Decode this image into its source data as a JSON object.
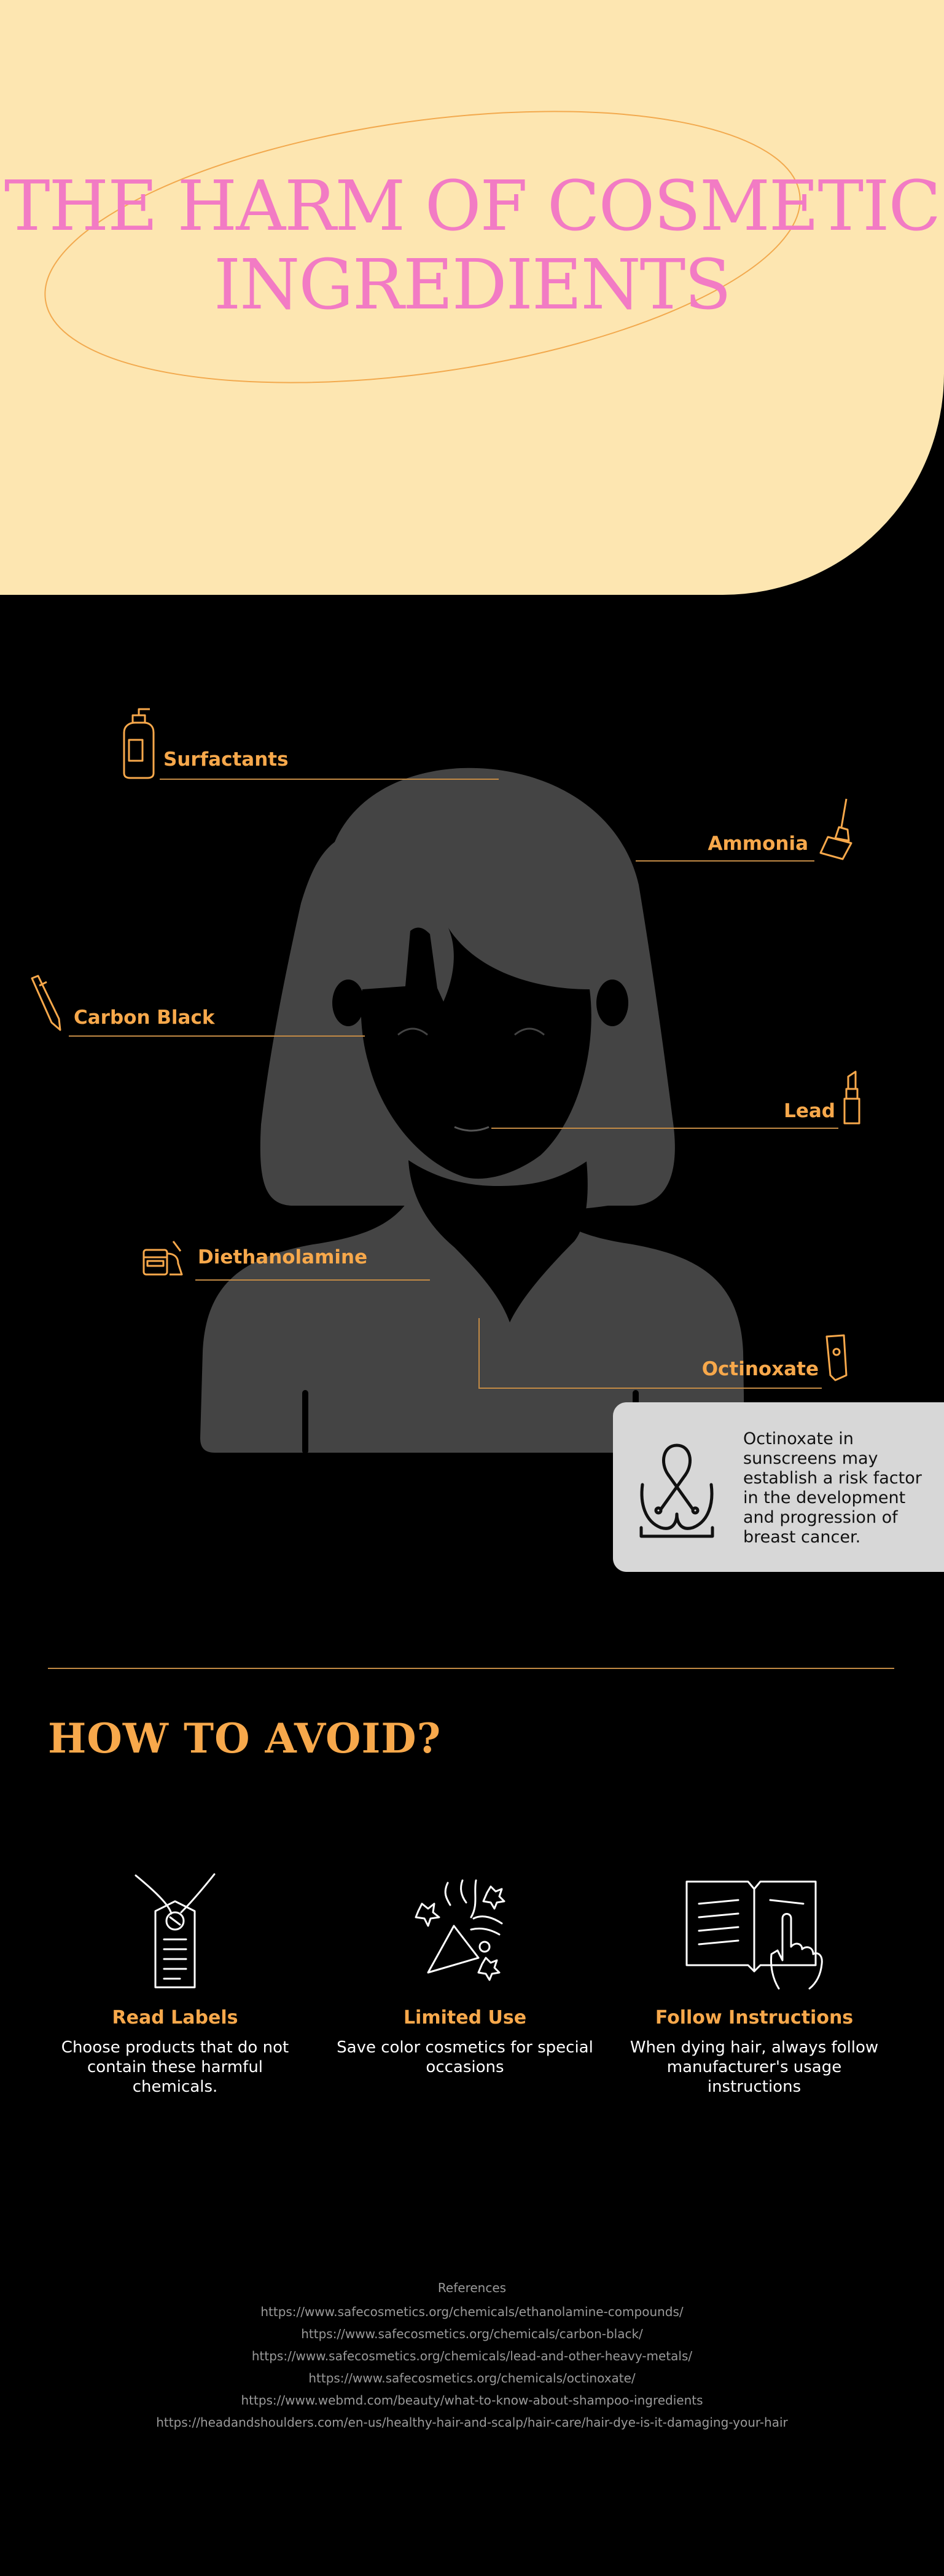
{
  "hero": {
    "title_line1": "THE HARM OF COSMETIC",
    "title_line2": "INGREDIENTS"
  },
  "colors": {
    "hero_bg": "#FDE6B1",
    "title": "#F27BC4",
    "accent": "#F7A84B",
    "silhouette": "#444444",
    "background": "#000000",
    "card": "#D7D7D7"
  },
  "ingredients": [
    {
      "name": "Surfactants",
      "icon": "pump-bottle-icon"
    },
    {
      "name": "Ammonia",
      "icon": "hair-dye-brush-icon"
    },
    {
      "name": "Carbon Black",
      "icon": "eyeliner-pencil-icon"
    },
    {
      "name": "Lead",
      "icon": "lipstick-icon"
    },
    {
      "name": "Diethanolamine",
      "icon": "cosmetics-set-icon"
    },
    {
      "name": "Octinoxate",
      "icon": "sunscreen-tube-icon"
    }
  ],
  "info_card": {
    "icon": "breast-cancer-ribbon-icon",
    "text": "Octinoxate in sunscreens may establish a risk factor in the development and progression of breast cancer."
  },
  "avoid": {
    "heading": "HOW TO AVOID?",
    "tips": [
      {
        "title": "Read Labels",
        "text": "Choose products that do not contain these harmful chemicals.",
        "icon": "price-tag-icon"
      },
      {
        "title": "Limited Use",
        "text": "Save color cosmetics for special occasions",
        "icon": "party-popper-icon"
      },
      {
        "title": "Follow Instructions",
        "text": "When dying hair, always follow manufacturer's usage instructions",
        "icon": "book-hand-icon"
      }
    ]
  },
  "references": {
    "title": "References",
    "links": [
      "https://www.safecosmetics.org/chemicals/ethanolamine-compounds/",
      "https://www.safecosmetics.org/chemicals/carbon-black/",
      "https://www.safecosmetics.org/chemicals/lead-and-other-heavy-metals/",
      "https://www.safecosmetics.org/chemicals/octinoxate/",
      "https://www.webmd.com/beauty/what-to-know-about-shampoo-ingredients",
      "https://headandshoulders.com/en-us/healthy-hair-and-scalp/hair-care/hair-dye-is-it-damaging-your-hair"
    ]
  }
}
